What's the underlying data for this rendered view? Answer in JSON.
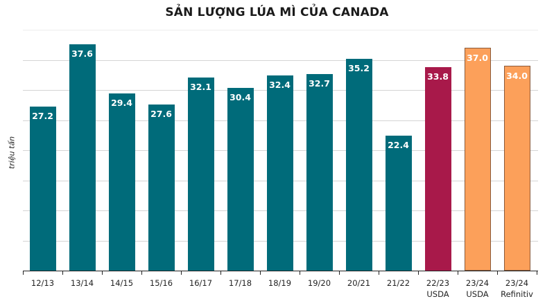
{
  "chart_data": {
    "type": "bar",
    "title": "SẢN LƯỢNG LÚA MÌ CỦA CANADA",
    "xlabel": "",
    "ylabel": "triệu tấn",
    "ylim": [
      0,
      40
    ],
    "grid": true,
    "gridlines": [
      0,
      5,
      10,
      15,
      20,
      25,
      30,
      35,
      40
    ],
    "categories": [
      "12/13",
      "13/14",
      "14/15",
      "15/16",
      "16/17",
      "17/18",
      "18/19",
      "19/20",
      "20/21",
      "21/22",
      "22/23 USDA",
      "23/24 USDA",
      "23/24 Refinitiv"
    ],
    "values": [
      27.2,
      37.6,
      29.4,
      27.6,
      32.1,
      30.4,
      32.4,
      32.7,
      35.2,
      22.4,
      33.8,
      37.0,
      34.0
    ],
    "colors": [
      "#006b7a",
      "#006b7a",
      "#006b7a",
      "#006b7a",
      "#006b7a",
      "#006b7a",
      "#006b7a",
      "#006b7a",
      "#006b7a",
      "#006b7a",
      "#a8194a",
      "#fca05a",
      "#fca05a"
    ],
    "data_labels": [
      "27.2",
      "37.6",
      "29.4",
      "27.6",
      "32.1",
      "30.4",
      "32.4",
      "32.7",
      "35.2",
      "22.4",
      "33.8",
      "37.0",
      "34.0"
    ],
    "x_labels": [
      [
        "12/13"
      ],
      [
        "13/14"
      ],
      [
        "14/15"
      ],
      [
        "15/16"
      ],
      [
        "16/17"
      ],
      [
        "17/18"
      ],
      [
        "18/19"
      ],
      [
        "19/20"
      ],
      [
        "20/21"
      ],
      [
        "21/22"
      ],
      [
        "22/23",
        "USDA"
      ],
      [
        "23/24",
        "USDA"
      ],
      [
        "23/24",
        "Refinitiv"
      ]
    ]
  }
}
